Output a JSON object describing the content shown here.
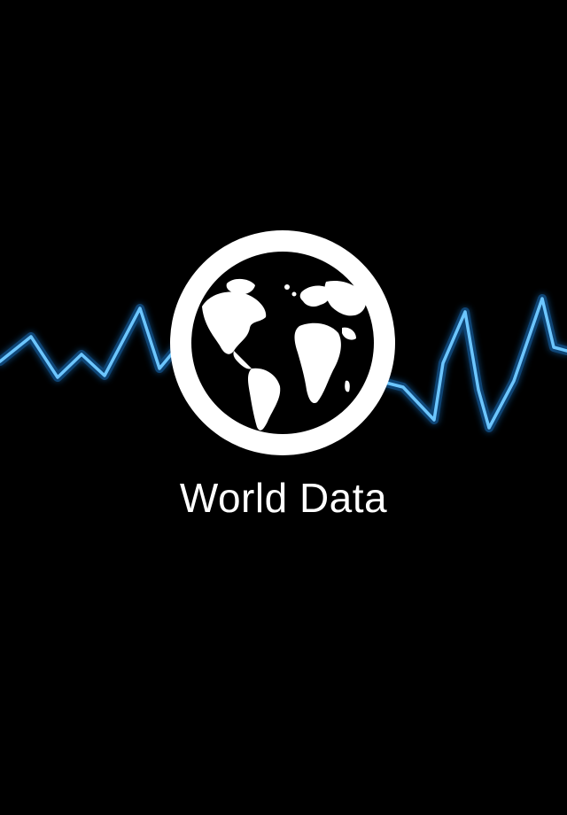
{
  "splash": {
    "title": "World Data",
    "logo_icon": "globe-icon",
    "decoration": "signal-waveform"
  },
  "colors": {
    "background": "#000000",
    "waveform": "#4fb8ff",
    "waveform_glow": "#1e7fd6",
    "logo": "#ffffff",
    "title": "#ffffff"
  }
}
